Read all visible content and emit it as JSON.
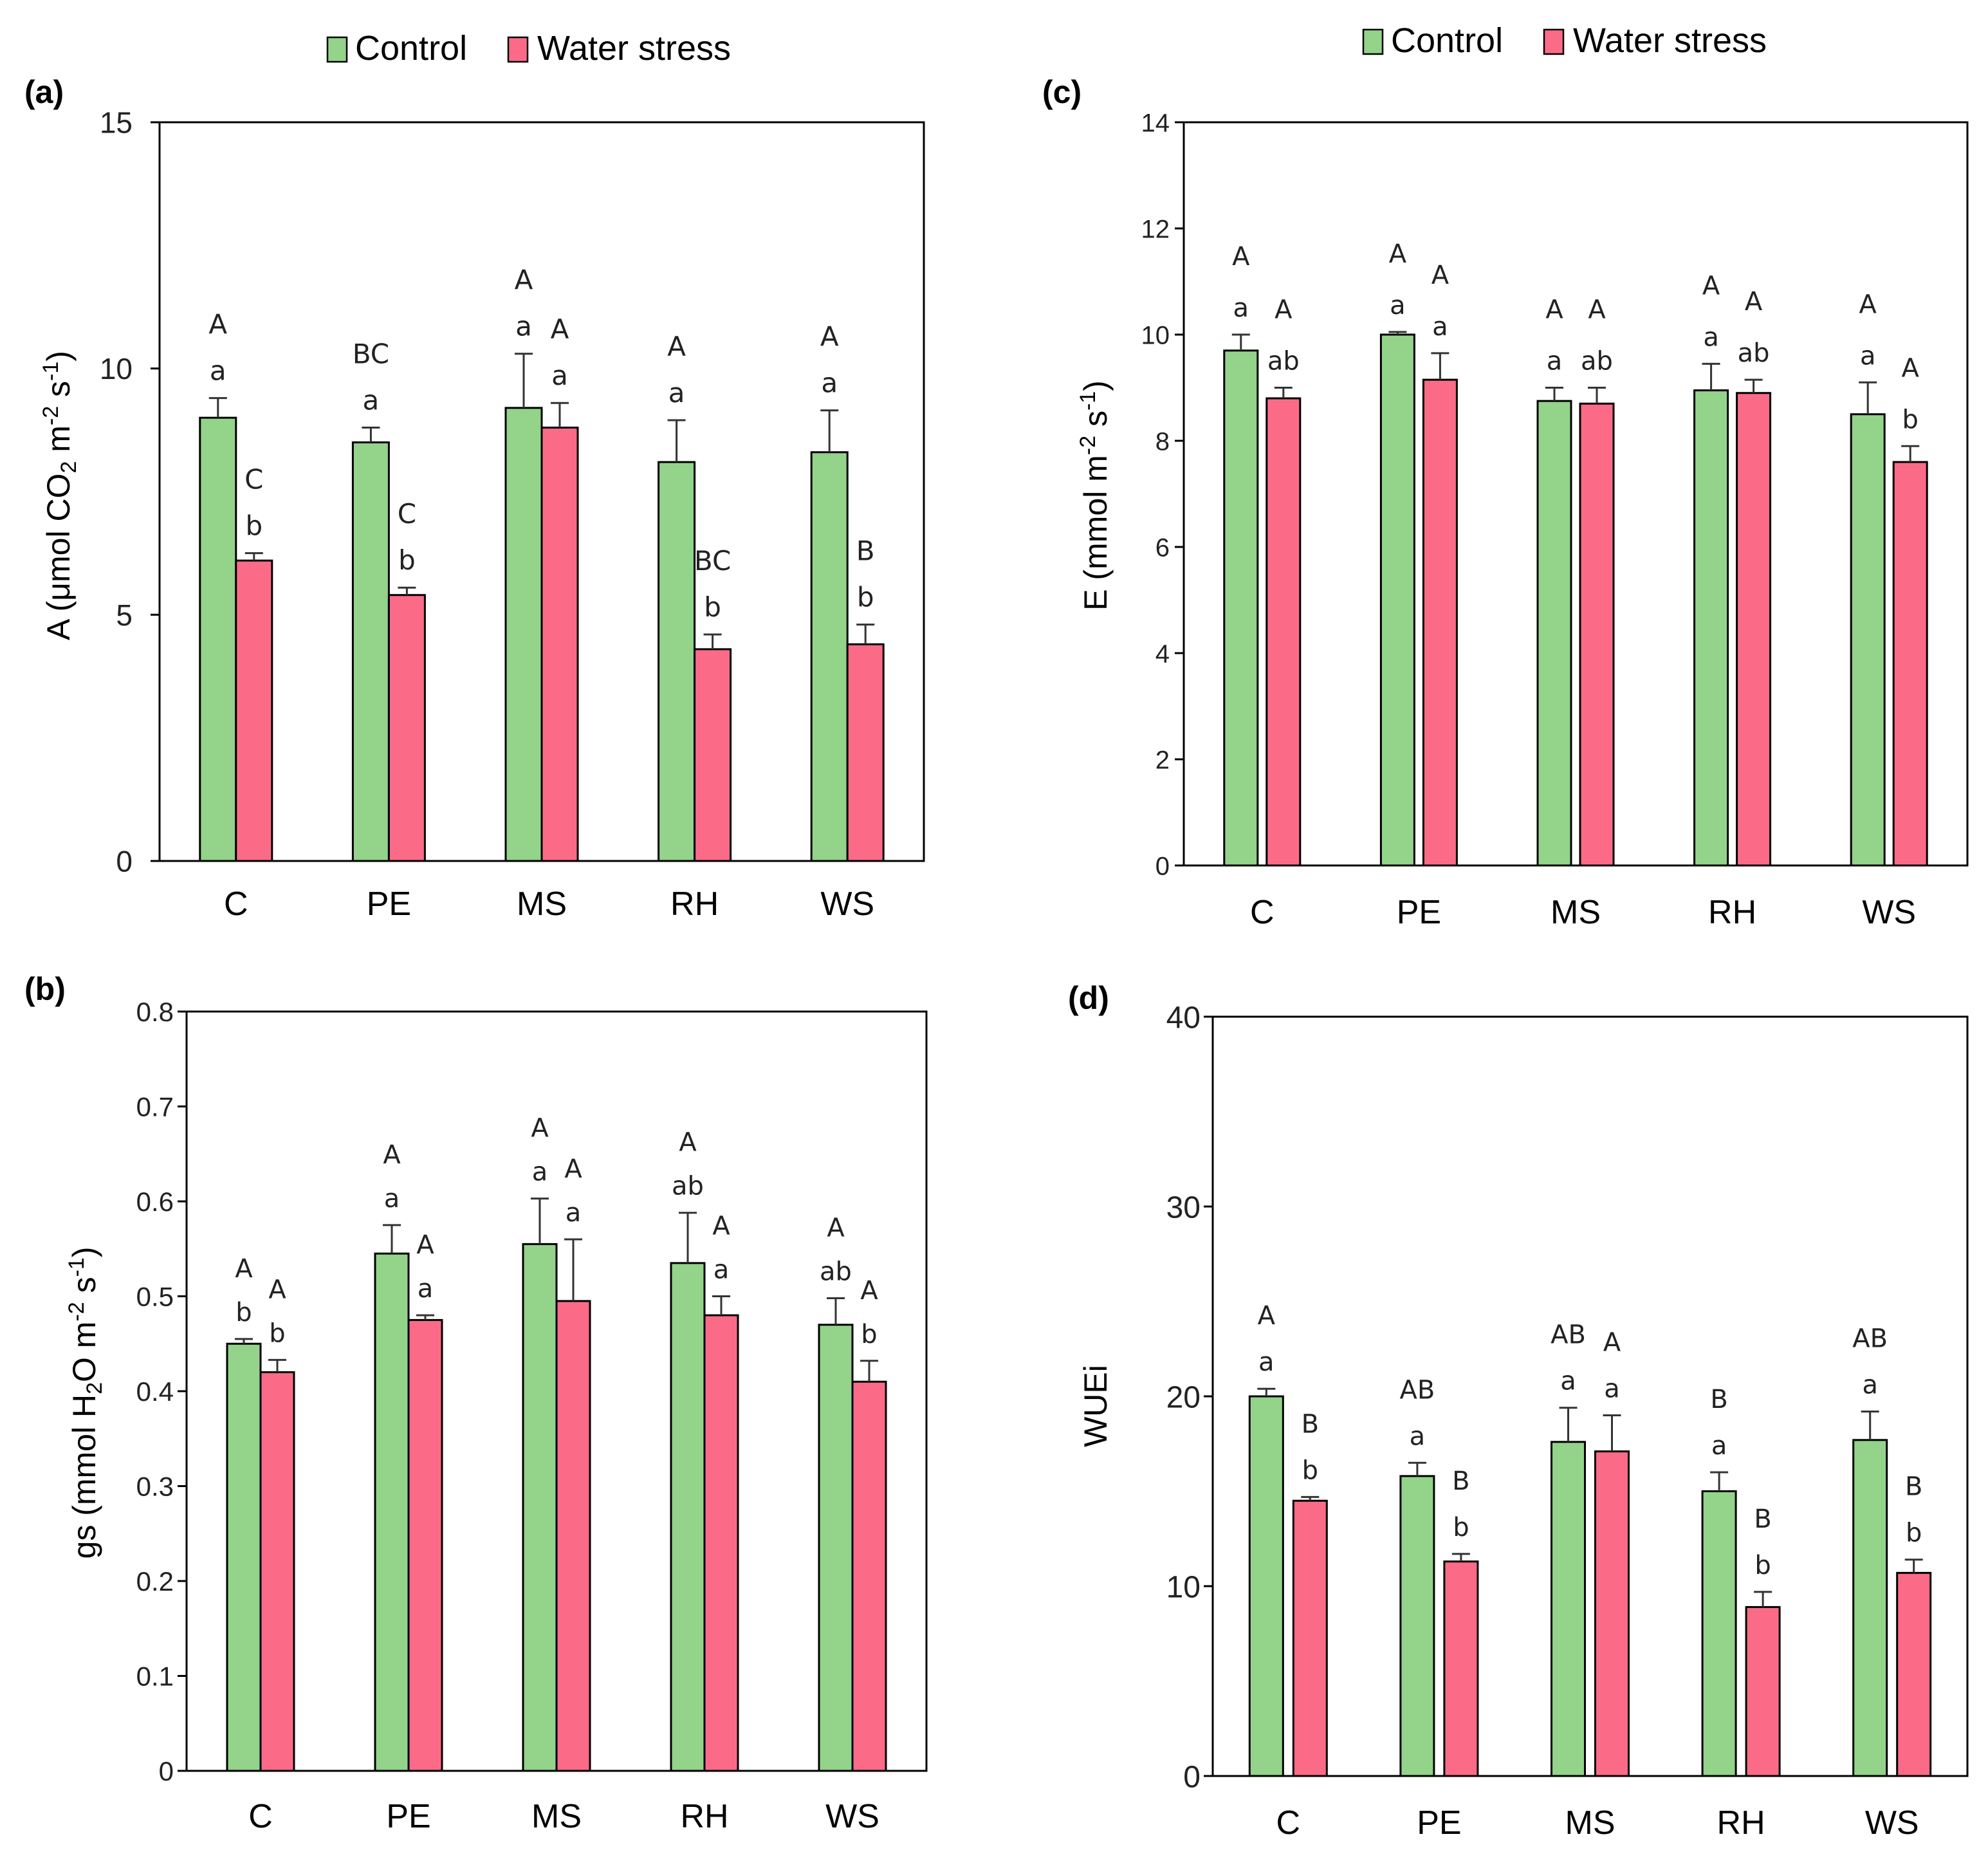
{
  "legend": {
    "control": "Control",
    "water_stress": "Water stress"
  },
  "colors": {
    "control": "#93d38a",
    "water_stress": "#fb6b88",
    "axis": "#000000",
    "text": "#111111"
  },
  "chart_data": [
    {
      "panel": "(a)",
      "type": "bar",
      "ylabel": {
        "pre": "A (μmol CO",
        "sub": "2",
        "mid": " m",
        "sup1": "-2",
        "mid2": " s",
        "sup2": "-1",
        "post": ")"
      },
      "ylim": [
        0,
        15
      ],
      "yticks": [
        "0",
        "5",
        "10",
        "15"
      ],
      "categories": [
        "C",
        "PE",
        "MS",
        "RH",
        "WS"
      ],
      "series": [
        {
          "name": "Control",
          "values": [
            9.0,
            8.5,
            9.2,
            8.1,
            8.3
          ],
          "errors": [
            0.4,
            0.3,
            1.1,
            0.85,
            0.85
          ],
          "labels": [
            [
              "A",
              "a"
            ],
            [
              "BC",
              "a"
            ],
            [
              "A",
              "a"
            ],
            [
              "A",
              "a"
            ],
            [
              "A",
              "a"
            ]
          ]
        },
        {
          "name": "Water stress",
          "values": [
            6.1,
            5.4,
            8.8,
            4.3,
            4.4
          ],
          "errors": [
            0.15,
            0.15,
            0.5,
            0.3,
            0.4
          ],
          "labels": [
            [
              "C",
              "b"
            ],
            [
              "C",
              "b"
            ],
            [
              "A",
              "a"
            ],
            [
              "BC",
              "b"
            ],
            [
              "B",
              "b"
            ]
          ]
        }
      ]
    },
    {
      "panel": "(b)",
      "type": "bar",
      "ylabel": {
        "pre": "gs  (mmol H",
        "sub": "2",
        "mid": "O m",
        "sup1": "-2",
        "mid2": " s",
        "sup2": "-1",
        "post": ")"
      },
      "ylim": [
        0,
        0.8
      ],
      "yticks": [
        "0",
        "0.1",
        "0.2",
        "0.3",
        "0.4",
        "0.5",
        "0.6",
        "0.7",
        "0.8"
      ],
      "categories": [
        "C",
        "PE",
        "MS",
        "RH",
        "WS"
      ],
      "series": [
        {
          "name": "Control",
          "values": [
            0.45,
            0.545,
            0.555,
            0.535,
            0.47
          ],
          "errors": [
            0.005,
            0.03,
            0.048,
            0.053,
            0.028
          ],
          "labels": [
            [
              "A",
              "b"
            ],
            [
              "A",
              "a"
            ],
            [
              "A",
              "a"
            ],
            [
              "A",
              "ab"
            ],
            [
              "A",
              "ab"
            ]
          ]
        },
        {
          "name": "Water stress",
          "values": [
            0.42,
            0.475,
            0.495,
            0.48,
            0.41
          ],
          "errors": [
            0.013,
            0.005,
            0.065,
            0.02,
            0.022
          ],
          "labels": [
            [
              "A",
              "b"
            ],
            [
              "A",
              "a"
            ],
            [
              "A",
              "a"
            ],
            [
              "A",
              "a"
            ],
            [
              "A",
              "b"
            ]
          ]
        }
      ]
    },
    {
      "panel": "(c)",
      "type": "bar",
      "ylabel": {
        "pre": "E  (mmol m",
        "sub": "",
        "mid": "",
        "sup1": "-2",
        "mid2": " s",
        "sup2": "-1",
        "post": ")"
      },
      "ylim": [
        0,
        14
      ],
      "yticks": [
        "0",
        "2",
        "4",
        "6",
        "8",
        "10",
        "12",
        "14"
      ],
      "categories": [
        "C",
        "PE",
        "MS",
        "RH",
        "WS"
      ],
      "series": [
        {
          "name": "Control",
          "values": [
            9.7,
            10.0,
            8.75,
            8.95,
            8.5
          ],
          "errors": [
            0.3,
            0.05,
            0.25,
            0.5,
            0.6
          ],
          "labels": [
            [
              "A",
              "a"
            ],
            [
              "A",
              "a"
            ],
            [
              "A",
              "a"
            ],
            [
              "A",
              "a"
            ],
            [
              "A",
              "a"
            ]
          ]
        },
        {
          "name": "Water stress",
          "values": [
            8.8,
            9.15,
            8.7,
            8.9,
            7.6
          ],
          "errors": [
            0.2,
            0.5,
            0.3,
            0.25,
            0.3
          ],
          "labels": [
            [
              "A",
              "ab"
            ],
            [
              "A",
              "a"
            ],
            [
              "A",
              "ab"
            ],
            [
              "A",
              "ab"
            ],
            [
              "A",
              "b"
            ]
          ]
        }
      ]
    },
    {
      "panel": "(d)",
      "type": "bar",
      "ylabel": {
        "pre": "WUEi",
        "sub": "",
        "mid": "",
        "sup1": "",
        "mid2": "",
        "sup2": "",
        "post": ""
      },
      "ylim": [
        0,
        40
      ],
      "yticks": [
        "0",
        "10",
        "20",
        "30",
        "40"
      ],
      "categories": [
        "C",
        "PE",
        "MS",
        "RH",
        "WS"
      ],
      "series": [
        {
          "name": "Control",
          "values": [
            20.0,
            15.8,
            17.6,
            15.0,
            17.7
          ],
          "errors": [
            0.4,
            0.7,
            1.8,
            1.0,
            1.5
          ],
          "labels": [
            [
              "A",
              "a"
            ],
            [
              "AB",
              "a"
            ],
            [
              "AB",
              "a"
            ],
            [
              "B",
              "a"
            ],
            [
              "AB",
              "a"
            ]
          ]
        },
        {
          "name": "Water stress",
          "values": [
            14.5,
            11.3,
            17.1,
            8.9,
            10.7
          ],
          "errors": [
            0.2,
            0.4,
            1.9,
            0.8,
            0.7
          ],
          "labels": [
            [
              "B",
              "b"
            ],
            [
              "B",
              "b"
            ],
            [
              "A",
              "a"
            ],
            [
              "B",
              "b"
            ],
            [
              "B",
              "b"
            ]
          ]
        }
      ]
    }
  ]
}
